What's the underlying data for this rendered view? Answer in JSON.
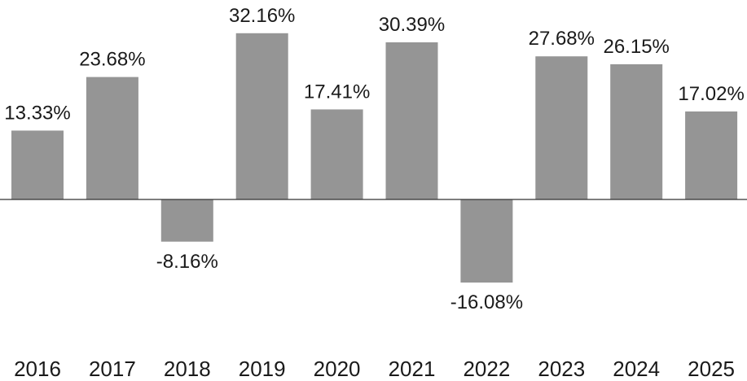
{
  "chart_data": {
    "type": "bar",
    "title": "",
    "xlabel": "",
    "ylabel": "",
    "categories": [
      "2016",
      "2017",
      "2018",
      "2019",
      "2020",
      "2021",
      "2022",
      "2023",
      "2024",
      "2025"
    ],
    "values": [
      13.33,
      23.68,
      -8.16,
      32.16,
      17.41,
      30.39,
      -16.08,
      27.68,
      26.15,
      17.02
    ],
    "value_labels": [
      "13.33%",
      "23.68%",
      "-8.16%",
      "32.16%",
      "17.41%",
      "30.39%",
      "-16.08%",
      "27.68%",
      "26.15%",
      "17.02%"
    ],
    "unit": "%",
    "grid": false,
    "legend": "none",
    "bar_color": "#959595"
  }
}
